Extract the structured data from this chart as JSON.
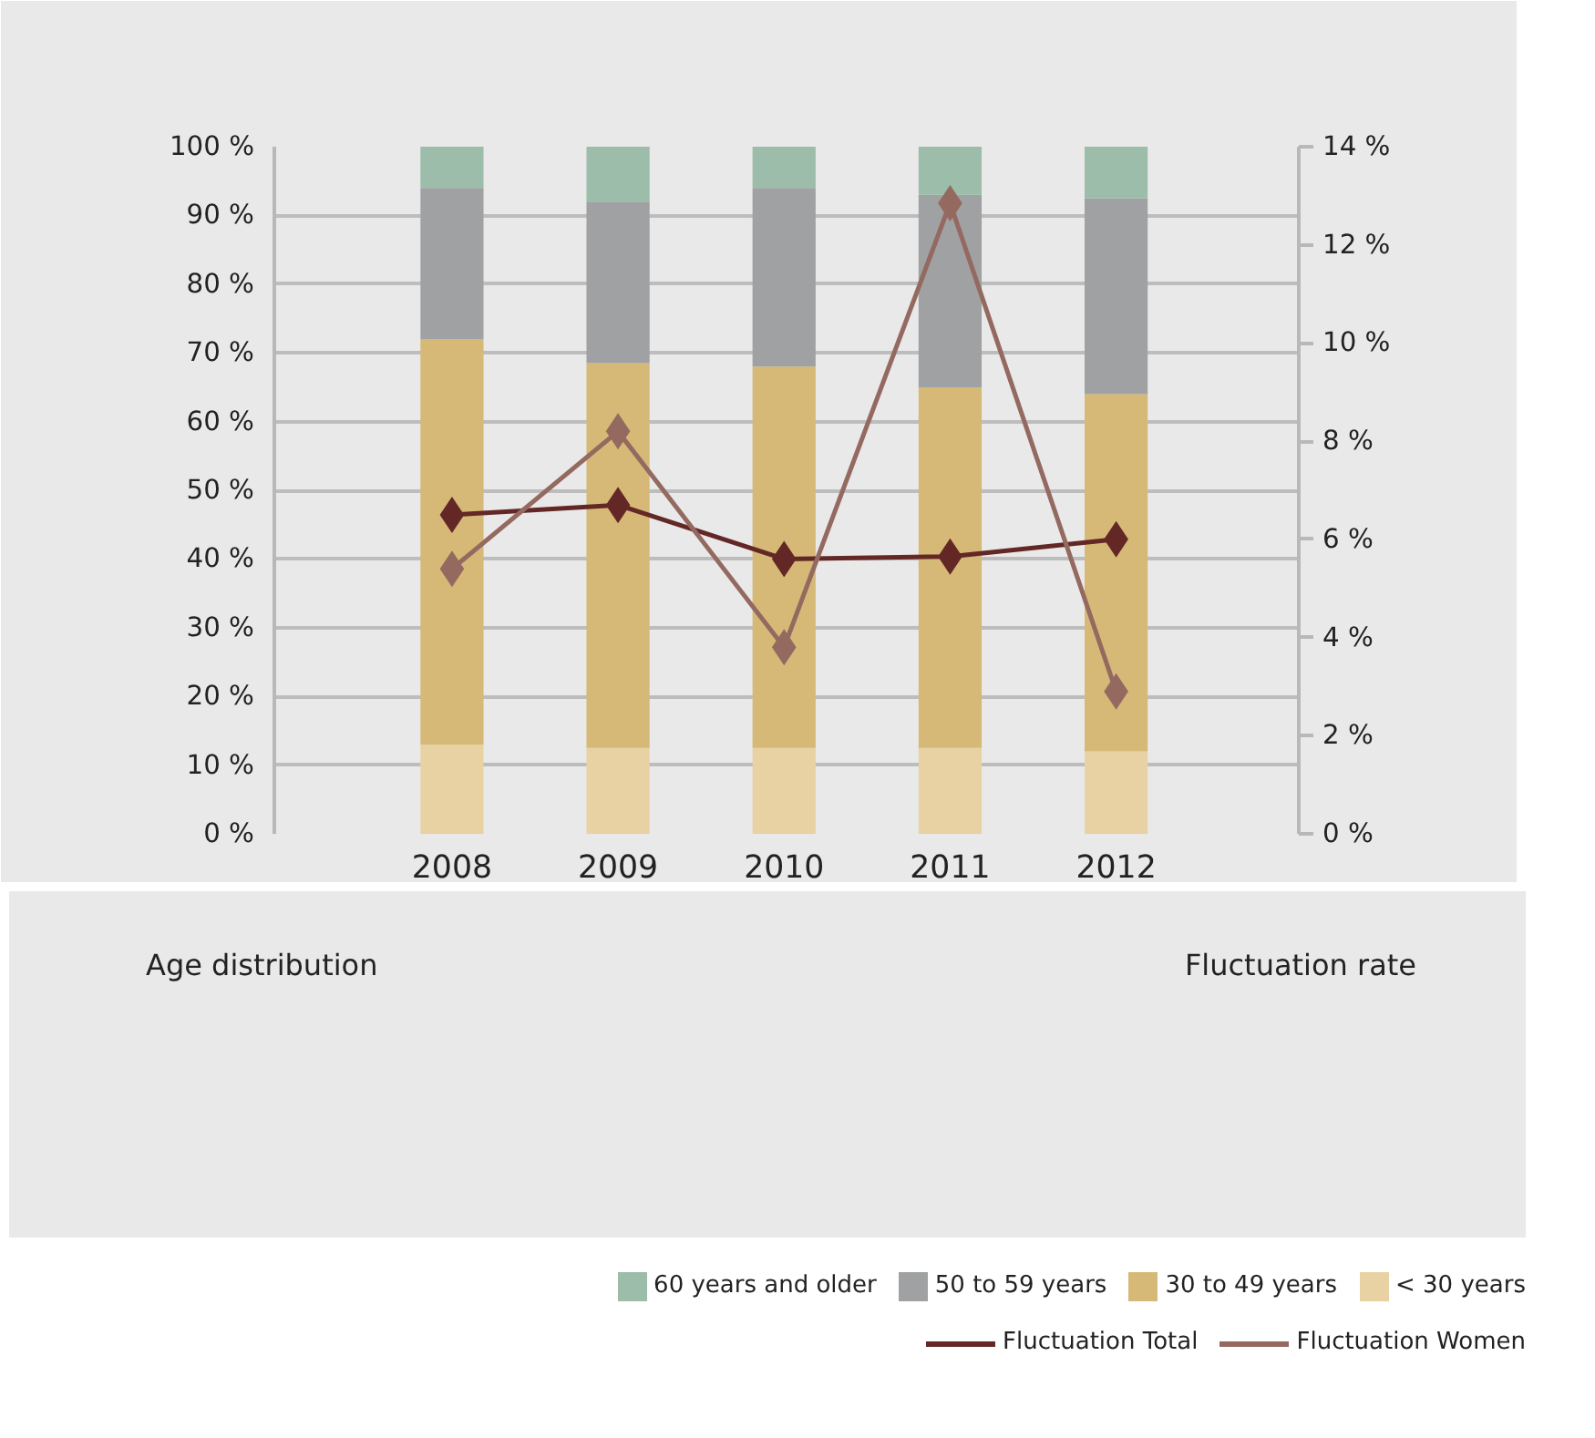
{
  "chart_data": {
    "type": "bar",
    "stacked": true,
    "categories": [
      "2008",
      "2009",
      "2010",
      "2011",
      "2012"
    ],
    "ylabel": "Age distribution",
    "y2label": "Fluctuation rate",
    "ylim": [
      0,
      100
    ],
    "yticks": [
      {
        "value": 0,
        "label": "0 %"
      },
      {
        "value": 10,
        "label": "10 %"
      },
      {
        "value": 20,
        "label": "20 %"
      },
      {
        "value": 30,
        "label": "30 %"
      },
      {
        "value": 40,
        "label": "40 %"
      },
      {
        "value": 50,
        "label": "50 %"
      },
      {
        "value": 60,
        "label": "60 %"
      },
      {
        "value": 70,
        "label": "70 %"
      },
      {
        "value": 80,
        "label": "80 %"
      },
      {
        "value": 90,
        "label": "90 %"
      },
      {
        "value": 100,
        "label": "100 %"
      }
    ],
    "y2lim": [
      0,
      14
    ],
    "y2ticks": [
      {
        "value": 0,
        "label": "0 %"
      },
      {
        "value": 2,
        "label": "2 %"
      },
      {
        "value": 4,
        "label": "4 %"
      },
      {
        "value": 6,
        "label": "6 %"
      },
      {
        "value": 8,
        "label": "8 %"
      },
      {
        "value": 10,
        "label": "10 %"
      },
      {
        "value": 12,
        "label": "12 %"
      },
      {
        "value": 14,
        "label": "14 %"
      }
    ],
    "grid": "y",
    "legend": "bottom",
    "marker": "diamond",
    "series": [
      {
        "name": "< 30 years",
        "color": "#e8d2a4",
        "values": [
          13,
          12.5,
          12.5,
          12.5,
          12
        ]
      },
      {
        "name": "30 to 49 years",
        "color": "#d6b977",
        "values": [
          59,
          56,
          55.5,
          52.5,
          52
        ]
      },
      {
        "name": "50 to 59 years",
        "color": "#a0a1a2",
        "values": [
          22,
          23.5,
          26,
          28,
          28.5
        ]
      },
      {
        "name": "60 years and older",
        "color": "#9bbdaa",
        "values": [
          6,
          8,
          6,
          7,
          7.5
        ]
      },
      {
        "name": "Fluctuation Total",
        "type": "line",
        "axis": "y2",
        "color": "#632826",
        "values": [
          6.5,
          6.7,
          5.6,
          5.65,
          6.0
        ]
      },
      {
        "name": "Fluctuation Women",
        "type": "line",
        "axis": "y2",
        "color": "#946a60",
        "values": [
          5.4,
          8.2,
          3.8,
          12.85,
          2.9
        ]
      }
    ]
  }
}
